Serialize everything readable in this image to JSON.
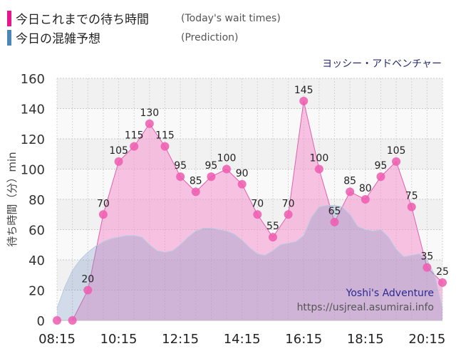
{
  "legend": {
    "actual": {
      "label": "今日これまでの待ち時間",
      "note": "(Today's wait times)",
      "color": "#e8168c"
    },
    "prediction": {
      "label": "今日の混雑予想",
      "note": "(Prediction)",
      "color": "#4a86b8"
    }
  },
  "attraction_name": "ヨッシー・アドベンチャー",
  "watermark": {
    "name": "Yoshi's Adventure",
    "url": "https://usjreal.asumirai.info"
  },
  "chart_data": {
    "type": "area",
    "ylabel": "待ち時間（分）min",
    "ylim": [
      0,
      160
    ],
    "yticks": [
      0,
      20,
      40,
      60,
      80,
      100,
      120,
      140,
      160
    ],
    "xlim": [
      "08:15",
      "20:45"
    ],
    "xticks": [
      "08:15",
      "10:15",
      "12:15",
      "14:15",
      "16:15",
      "18:15",
      "20:15"
    ],
    "series": [
      {
        "name": "今日これまでの待ち時間",
        "x": [
          "08:15",
          "08:45",
          "09:15",
          "09:45",
          "10:15",
          "10:45",
          "11:15",
          "11:45",
          "12:15",
          "12:45",
          "13:15",
          "13:45",
          "14:15",
          "14:45",
          "15:15",
          "15:45",
          "16:15",
          "16:45",
          "17:15",
          "17:45",
          "18:15",
          "18:45",
          "19:15",
          "19:45",
          "20:15",
          "20:45"
        ],
        "values": [
          0,
          0,
          20,
          70,
          105,
          115,
          130,
          115,
          95,
          85,
          95,
          100,
          90,
          70,
          55,
          70,
          145,
          100,
          65,
          85,
          80,
          95,
          105,
          75,
          35,
          25
        ],
        "color": "#e8168c"
      },
      {
        "name": "今日の混雑予想",
        "x": [
          "08:15",
          "08:30",
          "08:45",
          "09:00",
          "09:15",
          "09:30",
          "09:45",
          "10:00",
          "10:15",
          "10:30",
          "10:45",
          "11:00",
          "11:15",
          "11:30",
          "11:45",
          "12:00",
          "12:15",
          "12:30",
          "12:45",
          "13:00",
          "13:15",
          "13:30",
          "13:45",
          "14:00",
          "14:15",
          "14:30",
          "14:45",
          "15:00",
          "15:15",
          "15:30",
          "15:45",
          "16:00",
          "16:15",
          "16:30",
          "16:45",
          "17:00",
          "17:15",
          "17:30",
          "17:45",
          "18:00",
          "18:15",
          "18:30",
          "18:45",
          "19:00",
          "19:15",
          "19:30",
          "19:45",
          "20:00",
          "20:15",
          "20:30",
          "20:45"
        ],
        "values": [
          8,
          22,
          33,
          40,
          45,
          49,
          52,
          54,
          55,
          56,
          56,
          55,
          50,
          46,
          45,
          46,
          50,
          55,
          59,
          61,
          61,
          60,
          59,
          57,
          53,
          48,
          44,
          43,
          46,
          50,
          51,
          52,
          56,
          68,
          75,
          76,
          76,
          75,
          70,
          62,
          60,
          59,
          60,
          55,
          47,
          42,
          43,
          44,
          40,
          30,
          8
        ],
        "color": "#4a86b8"
      }
    ]
  }
}
